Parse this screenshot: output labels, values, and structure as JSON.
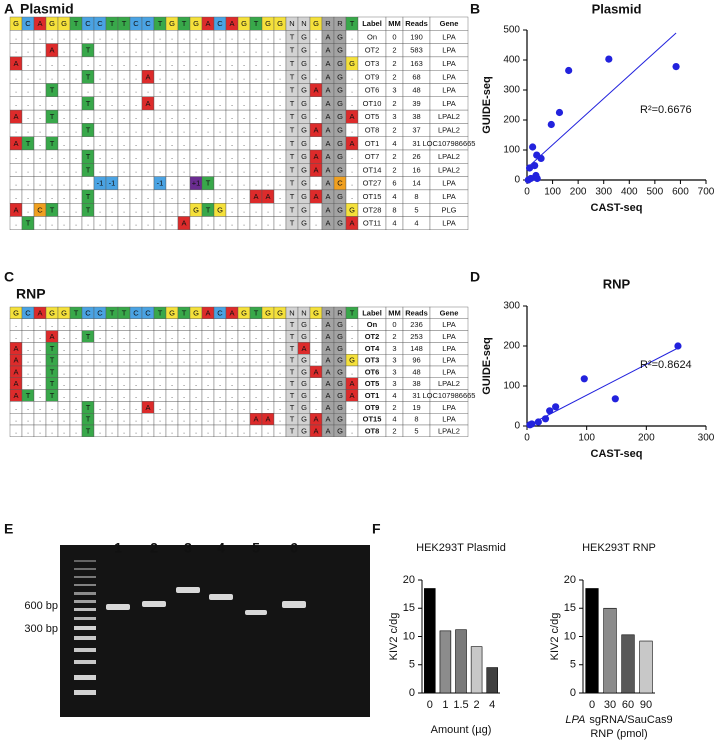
{
  "panel_labels": [
    "A",
    "B",
    "C",
    "D",
    "E",
    "F"
  ],
  "table_a": {
    "title": "Plasmid",
    "header": [
      "G",
      "C",
      "A",
      "G",
      "G",
      "T",
      "C",
      "C",
      "T",
      "T",
      "C",
      "C",
      "T",
      "G",
      "T",
      "G",
      "A",
      "C",
      "A",
      "G",
      "T",
      "G",
      "G",
      "N",
      "N",
      "G",
      "R",
      "R",
      "T",
      "Label",
      "MM",
      "Reads",
      "Gene"
    ],
    "rows": [
      [
        ".",
        ".",
        ".",
        ".",
        ".",
        ".",
        ".",
        ".",
        ".",
        ".",
        ".",
        ".",
        ".",
        ".",
        ".",
        ".",
        ".",
        ".",
        ".",
        ".",
        ".",
        ".",
        ".",
        "T",
        "G",
        ".",
        "A",
        "G",
        ".",
        "On",
        0,
        190,
        "LPA"
      ],
      [
        ".",
        ".",
        ".",
        "A",
        ".",
        ".",
        "T",
        ".",
        ".",
        ".",
        ".",
        ".",
        ".",
        ".",
        ".",
        ".",
        ".",
        ".",
        ".",
        ".",
        ".",
        ".",
        ".",
        "T",
        "G",
        ".",
        "A",
        "G",
        ".",
        "OT2",
        2,
        583,
        "LPA"
      ],
      [
        "A",
        ".",
        ".",
        ".",
        ".",
        ".",
        ".",
        ".",
        ".",
        ".",
        ".",
        ".",
        ".",
        ".",
        ".",
        ".",
        ".",
        ".",
        ".",
        ".",
        ".",
        ".",
        ".",
        "T",
        "G",
        ".",
        "A",
        "G",
        "G",
        "OT3",
        2,
        163,
        "LPA"
      ],
      [
        ".",
        ".",
        ".",
        ".",
        ".",
        ".",
        "T",
        ".",
        ".",
        ".",
        ".",
        "A",
        ".",
        ".",
        ".",
        ".",
        ".",
        ".",
        ".",
        ".",
        ".",
        ".",
        ".",
        "T",
        "G",
        ".",
        "A",
        "G",
        ".",
        "OT9",
        2,
        68,
        "LPA"
      ],
      [
        ".",
        ".",
        ".",
        "T",
        ".",
        ".",
        ".",
        ".",
        ".",
        ".",
        ".",
        ".",
        ".",
        ".",
        ".",
        ".",
        ".",
        ".",
        ".",
        ".",
        ".",
        ".",
        ".",
        "T",
        "G",
        "A",
        "A",
        "G",
        ".",
        "OT6",
        3,
        48,
        "LPA"
      ],
      [
        ".",
        ".",
        ".",
        ".",
        ".",
        ".",
        "T",
        ".",
        ".",
        ".",
        ".",
        "A",
        ".",
        ".",
        ".",
        ".",
        ".",
        ".",
        ".",
        ".",
        ".",
        ".",
        ".",
        "T",
        "G",
        ".",
        "A",
        "G",
        ".",
        "OT10",
        2,
        39,
        "LPA"
      ],
      [
        "A",
        ".",
        ".",
        "T",
        ".",
        ".",
        ".",
        ".",
        ".",
        ".",
        ".",
        ".",
        ".",
        ".",
        ".",
        ".",
        ".",
        ".",
        ".",
        ".",
        ".",
        ".",
        ".",
        "T",
        "G",
        ".",
        "A",
        "G",
        "A",
        "OT5",
        3,
        38,
        "LPAL2"
      ],
      [
        ".",
        ".",
        ".",
        ".",
        ".",
        ".",
        "T",
        ".",
        ".",
        ".",
        ".",
        ".",
        ".",
        ".",
        ".",
        ".",
        ".",
        ".",
        ".",
        ".",
        ".",
        ".",
        ".",
        "T",
        "G",
        "A",
        "A",
        "G",
        ".",
        "OT8",
        2,
        37,
        "LPAL2"
      ],
      [
        "A",
        "T",
        ".",
        "T",
        ".",
        ".",
        ".",
        ".",
        ".",
        ".",
        ".",
        ".",
        ".",
        ".",
        ".",
        ".",
        ".",
        ".",
        ".",
        ".",
        ".",
        ".",
        ".",
        "T",
        "G",
        ".",
        "A",
        "G",
        "A",
        "OT1",
        4,
        31,
        "LOC107986665"
      ],
      [
        ".",
        ".",
        ".",
        ".",
        ".",
        ".",
        "T",
        ".",
        ".",
        ".",
        ".",
        ".",
        ".",
        ".",
        ".",
        ".",
        ".",
        ".",
        ".",
        ".",
        ".",
        ".",
        ".",
        "T",
        "G",
        "A",
        "A",
        "G",
        ".",
        "OT7",
        2,
        26,
        "LPAL2"
      ],
      [
        ".",
        ".",
        ".",
        ".",
        ".",
        ".",
        "T",
        ".",
        ".",
        ".",
        ".",
        ".",
        ".",
        ".",
        ".",
        ".",
        ".",
        ".",
        ".",
        ".",
        ".",
        ".",
        ".",
        "T",
        "G",
        "A",
        "A",
        "G",
        ".",
        "OT14",
        2,
        16,
        "LPAL2"
      ],
      [
        ".",
        ".",
        ".",
        ".",
        ".",
        ".",
        ".",
        "-1",
        "-1",
        ".",
        ".",
        ".",
        "-1",
        ".",
        ".",
        "+1",
        "T",
        ".",
        ".",
        ".",
        ".",
        ".",
        ".",
        "T",
        "G",
        ".",
        "A",
        "C",
        ".",
        "OT27",
        6,
        14,
        "LPA"
      ],
      [
        ".",
        ".",
        ".",
        ".",
        ".",
        ".",
        "T",
        ".",
        ".",
        ".",
        ".",
        ".",
        ".",
        ".",
        ".",
        ".",
        ".",
        ".",
        ".",
        ".",
        "A",
        "A",
        ".",
        "T",
        "G",
        "A",
        "A",
        "G",
        ".",
        "OT15",
        4,
        8,
        "LPA"
      ],
      [
        "A",
        ".",
        "C",
        "T",
        ".",
        ".",
        "T",
        ".",
        ".",
        ".",
        ".",
        ".",
        ".",
        ".",
        ".",
        "G",
        "T",
        "G",
        ".",
        ".",
        ".",
        ".",
        ".",
        "T",
        "G",
        ".",
        "A",
        "G",
        "G",
        "OT28",
        8,
        5,
        "PLG"
      ],
      [
        ".",
        "T",
        ".",
        ".",
        ".",
        ".",
        ".",
        ".",
        ".",
        ".",
        ".",
        ".",
        ".",
        ".",
        "A",
        ".",
        ".",
        ".",
        ".",
        ".",
        ".",
        ".",
        ".",
        "T",
        "G",
        ".",
        "A",
        "G",
        "A",
        "OT11",
        4,
        4,
        "LPA"
      ]
    ]
  },
  "table_c": {
    "title": "RNP",
    "header": [
      "G",
      "C",
      "A",
      "G",
      "G",
      "T",
      "C",
      "C",
      "T",
      "T",
      "C",
      "C",
      "T",
      "G",
      "T",
      "G",
      "A",
      "C",
      "A",
      "G",
      "T",
      "G",
      "G",
      "N",
      "N",
      "G",
      "R",
      "R",
      "T",
      "Label",
      "MM",
      "Reads",
      "Gene"
    ],
    "rows": [
      [
        ".",
        ".",
        ".",
        ".",
        ".",
        ".",
        ".",
        ".",
        ".",
        ".",
        ".",
        ".",
        ".",
        ".",
        ".",
        ".",
        ".",
        ".",
        ".",
        ".",
        ".",
        ".",
        ".",
        "T",
        "G",
        ".",
        "A",
        "G",
        ".",
        "On",
        0,
        236,
        "LPA"
      ],
      [
        ".",
        ".",
        ".",
        "A",
        ".",
        ".",
        "T",
        ".",
        ".",
        ".",
        ".",
        ".",
        ".",
        ".",
        ".",
        ".",
        ".",
        ".",
        ".",
        ".",
        ".",
        ".",
        ".",
        "T",
        "G",
        ".",
        "A",
        "G",
        ".",
        "OT2",
        2,
        253,
        "LPA"
      ],
      [
        "A",
        ".",
        ".",
        "T",
        ".",
        ".",
        ".",
        ".",
        ".",
        ".",
        ".",
        ".",
        ".",
        ".",
        ".",
        ".",
        ".",
        ".",
        ".",
        ".",
        ".",
        ".",
        ".",
        "T",
        "A",
        ".",
        "A",
        "G",
        ".",
        "OT4",
        3,
        148,
        "LPA"
      ],
      [
        "A",
        ".",
        ".",
        "T",
        ".",
        ".",
        ".",
        ".",
        ".",
        ".",
        ".",
        ".",
        ".",
        ".",
        ".",
        ".",
        ".",
        ".",
        ".",
        ".",
        ".",
        ".",
        ".",
        "T",
        "G",
        ".",
        "A",
        "G",
        "G",
        "OT3",
        3,
        96,
        "LPA"
      ],
      [
        "A",
        ".",
        ".",
        "T",
        ".",
        ".",
        ".",
        ".",
        ".",
        ".",
        ".",
        ".",
        ".",
        ".",
        ".",
        ".",
        ".",
        ".",
        ".",
        ".",
        ".",
        ".",
        ".",
        "T",
        "G",
        "A",
        "A",
        "G",
        ".",
        "OT6",
        3,
        48,
        "LPA"
      ],
      [
        "A",
        ".",
        ".",
        "T",
        ".",
        ".",
        ".",
        ".",
        ".",
        ".",
        ".",
        ".",
        ".",
        ".",
        ".",
        ".",
        ".",
        ".",
        ".",
        ".",
        ".",
        ".",
        ".",
        "T",
        "G",
        ".",
        "A",
        "G",
        "A",
        "OT5",
        3,
        38,
        "LPAL2"
      ],
      [
        "A",
        "T",
        ".",
        "T",
        ".",
        ".",
        ".",
        ".",
        ".",
        ".",
        ".",
        ".",
        ".",
        ".",
        ".",
        ".",
        ".",
        ".",
        ".",
        ".",
        ".",
        ".",
        ".",
        "T",
        "G",
        ".",
        "A",
        "G",
        "A",
        "OT1",
        4,
        31,
        "LOC107986665"
      ],
      [
        ".",
        ".",
        ".",
        ".",
        ".",
        ".",
        "T",
        ".",
        ".",
        ".",
        ".",
        "A",
        ".",
        ".",
        ".",
        ".",
        ".",
        ".",
        ".",
        ".",
        ".",
        ".",
        ".",
        "T",
        "G",
        ".",
        "A",
        "G",
        ".",
        "OT9",
        2,
        19,
        "LPA"
      ],
      [
        ".",
        ".",
        ".",
        ".",
        ".",
        ".",
        "T",
        ".",
        ".",
        ".",
        ".",
        ".",
        ".",
        ".",
        ".",
        ".",
        ".",
        ".",
        ".",
        ".",
        "A",
        "A",
        ".",
        "T",
        "G",
        "A",
        "A",
        "G",
        ".",
        "OT15",
        4,
        8,
        "LPA"
      ],
      [
        ".",
        ".",
        ".",
        ".",
        ".",
        ".",
        "T",
        ".",
        ".",
        ".",
        ".",
        ".",
        ".",
        ".",
        ".",
        ".",
        ".",
        ".",
        ".",
        ".",
        ".",
        ".",
        ".",
        "T",
        "G",
        "A",
        "A",
        "G",
        ".",
        "OT8",
        2,
        5,
        "LPAL2"
      ]
    ]
  },
  "gel": {
    "lanes": [
      "1",
      "2",
      "3",
      "4",
      "5",
      "6"
    ],
    "markers": [
      "600 bp",
      "300 bp"
    ]
  },
  "chart_data": [
    {
      "type": "scatter",
      "title": "Plasmid",
      "xlabel": "CAST-seq",
      "ylabel": "GUIDE-seq",
      "color": "#2222dd",
      "x": [
        583,
        320,
        163,
        127,
        95,
        38,
        55,
        22,
        10,
        30,
        15,
        5,
        40,
        35
      ],
      "y": [
        378,
        403,
        365,
        225,
        185,
        83,
        72,
        110,
        40,
        48,
        5,
        0,
        5,
        15
      ],
      "fit": {
        "x": [
          0,
          583
        ],
        "y": [
          40,
          490
        ]
      },
      "annotation": "R²=0.6676",
      "xlim": [
        0,
        700
      ],
      "ylim": [
        0,
        500
      ],
      "xticks": [
        0,
        100,
        200,
        300,
        400,
        500,
        600,
        700
      ],
      "yticks": [
        0,
        100,
        200,
        300,
        400,
        500
      ]
    },
    {
      "type": "scatter",
      "title": "RNP",
      "xlabel": "CAST-seq",
      "ylabel": "GUIDE-seq",
      "color": "#2222dd",
      "x": [
        253,
        96,
        148,
        48,
        38,
        31,
        19,
        8,
        5
      ],
      "y": [
        200,
        118,
        68,
        48,
        38,
        18,
        10,
        5,
        3
      ],
      "fit": {
        "x": [
          0,
          253
        ],
        "y": [
          0,
          195
        ]
      },
      "annotation": "R²=0.8624",
      "xlim": [
        0,
        300
      ],
      "ylim": [
        0,
        300
      ],
      "xticks": [
        0,
        100,
        200,
        300
      ],
      "yticks": [
        0,
        100,
        200,
        300
      ]
    },
    {
      "type": "bar",
      "title": "HEK293T Plasmid",
      "ylabel": "KIV2 c/dg",
      "xlabel": "Amount (µg)",
      "categories": [
        "0",
        "1",
        "1.5",
        "2",
        "4"
      ],
      "values": [
        18.5,
        11,
        11.2,
        8.2,
        4.5
      ],
      "colors": [
        "#000000",
        "#8c8c8c",
        "#7a7a7a",
        "#c8c8c8",
        "#404040"
      ],
      "ylim": [
        0,
        20
      ],
      "yticks": [
        0,
        5,
        10,
        15,
        20
      ]
    },
    {
      "type": "bar",
      "title": "HEK293T RNP",
      "ylabel": "KIV2 c/dg",
      "xlabel": [
        "LPA",
        "sgRNA/SauCas9",
        "RNP (pmol)"
      ],
      "categories": [
        "0",
        "30",
        "60",
        "90"
      ],
      "values": [
        18.5,
        15,
        10.3,
        9.2
      ],
      "colors": [
        "#000000",
        "#8c8c8c",
        "#595959",
        "#c8c8c8"
      ],
      "ylim": [
        0,
        20
      ],
      "yticks": [
        0,
        5,
        10,
        15,
        20
      ]
    }
  ]
}
